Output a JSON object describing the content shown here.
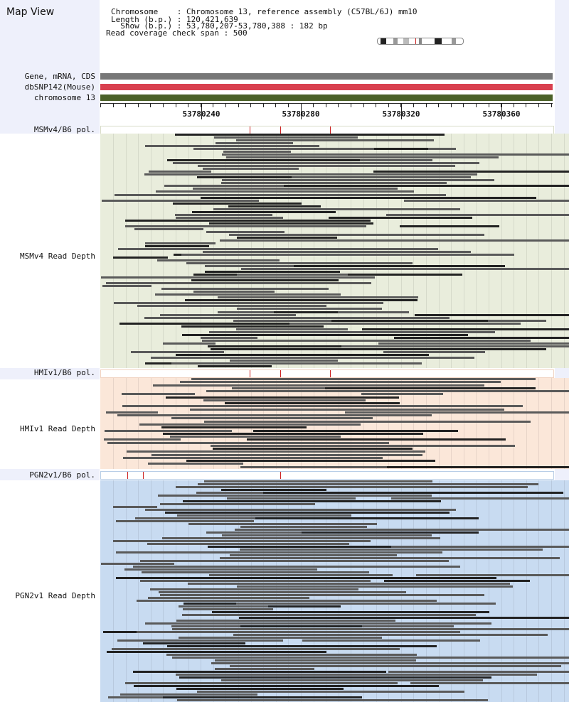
{
  "app": {
    "title": "Map View"
  },
  "info": {
    "chromosome": "Chromosome    : Chromosome 13, reference assembly (C57BL/6J) mm10",
    "length": "Length (b.p.) : 120,421,639",
    "show": "  Show (b.p.) : 53,780,207-53,780,388 : 182 bp",
    "coverage": "Read coverage check span : 500"
  },
  "tracks": [
    {
      "label": "Gene, mRNA, CDS",
      "color": "#777777"
    },
    {
      "label": "dbSNP142(Mouse)",
      "color": "#d9404f"
    },
    {
      "label": "chromosome 13",
      "color": "#4b6128"
    }
  ],
  "ruler": {
    "ticks": [
      "53780240",
      "53780280",
      "53780320",
      "53780360"
    ]
  },
  "lanes": [
    {
      "pol_label": "MSMv4/B6 pol.",
      "depth_label": "MSMv4 Read Depth",
      "bg": "#e9eddc",
      "border": "#d8dcc8"
    },
    {
      "pol_label": "HMIv1/B6 pol.",
      "depth_label": "HMIv1 Read Depth",
      "bg": "#fbe7d9",
      "border": "#f0d3c2"
    },
    {
      "pol_label": "PGN2v1/B6 pol.",
      "depth_label": "PGN2v1 Read Depth",
      "bg": "#c8dbf1",
      "border": "#b8cde6"
    }
  ],
  "colors": {
    "panel": "#eef0fb",
    "read_dark": "#222222",
    "read": "#5a5a5a",
    "snp": "#cc2222"
  },
  "icons": {
    "ideogram": "chromosome-ideogram-icon"
  }
}
